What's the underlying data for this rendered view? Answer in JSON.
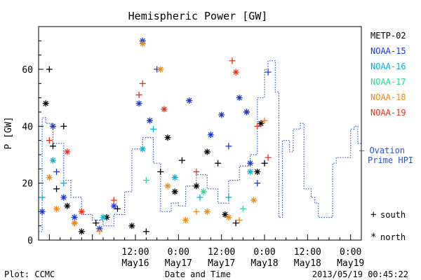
{
  "chart_data": {
    "type": "scatter",
    "title": "Hemispheric Power [GW]",
    "ylabel": "P [GW]",
    "xlabel": "Date and Time",
    "ylim": [
      0,
      75
    ],
    "yticks": [
      0,
      20,
      40,
      60
    ],
    "xrange": [
      "2013-05-15 09:00",
      "2013-05-19 03:00"
    ],
    "xticks": [
      {
        "t": "2013-05-16 12:00",
        "line1": "12:00",
        "line2": "May16"
      },
      {
        "t": "2013-05-17 00:00",
        "line1": "0:00",
        "line2": "May17"
      },
      {
        "t": "2013-05-17 12:00",
        "line1": "12:00",
        "line2": "May17"
      },
      {
        "t": "2013-05-18 00:00",
        "line1": "0:00",
        "line2": "May18"
      },
      {
        "t": "2013-05-18 12:00",
        "line1": "12:00",
        "line2": "May18"
      },
      {
        "t": "2013-05-19 00:00",
        "line1": "0:00",
        "line2": "May19"
      }
    ],
    "series": [
      {
        "name": "METP-02",
        "color": "#000000",
        "points": [
          [
            "2013-05-15 12:00",
            60,
            "s"
          ],
          [
            "2013-05-15 11:00",
            48,
            "n"
          ],
          [
            "2013-05-15 13:00",
            33,
            "s"
          ],
          [
            "2013-05-15 14:00",
            18,
            "s"
          ],
          [
            "2013-05-15 16:00",
            40,
            "s"
          ],
          [
            "2013-05-15 17:00",
            12,
            "n"
          ],
          [
            "2013-05-15 19:00",
            6,
            "s"
          ],
          [
            "2013-05-15 21:00",
            3,
            "n"
          ],
          [
            "2013-05-16 01:00",
            6,
            "s"
          ],
          [
            "2013-05-16 04:00",
            8,
            "n"
          ],
          [
            "2013-05-16 07:00",
            11,
            "s"
          ],
          [
            "2013-05-16 11:00",
            5,
            "n"
          ],
          [
            "2013-05-16 15:00",
            3,
            "s"
          ],
          [
            "2013-05-16 19:00",
            24,
            "s"
          ],
          [
            "2013-05-16 21:00",
            36,
            "n"
          ],
          [
            "2013-05-16 23:00",
            17,
            "n"
          ],
          [
            "2013-05-17 01:00",
            28,
            "s"
          ],
          [
            "2013-05-17 05:00",
            19,
            "n"
          ],
          [
            "2013-05-17 08:00",
            31,
            "n"
          ],
          [
            "2013-05-17 11:00",
            27,
            "s"
          ],
          [
            "2013-05-17 13:00",
            9,
            "n"
          ],
          [
            "2013-05-17 16:00",
            6,
            "s"
          ],
          [
            "2013-05-17 19:00",
            45,
            "s"
          ],
          [
            "2013-05-17 22:00",
            24,
            "n"
          ],
          [
            "2013-05-18 00:00",
            27,
            "s"
          ],
          [
            "2013-05-17 23:00",
            41,
            "n"
          ]
        ]
      },
      {
        "name": "NOAA-15",
        "color": "#1a36d8",
        "points": [
          [
            "2013-05-15 10:00",
            10,
            "n"
          ],
          [
            "2013-05-15 13:00",
            40,
            "n"
          ],
          [
            "2013-05-15 14:00",
            24,
            "s"
          ],
          [
            "2013-05-15 16:00",
            15,
            "n"
          ],
          [
            "2013-05-15 19:00",
            8,
            "n"
          ],
          [
            "2013-05-16 02:00",
            4,
            "n"
          ],
          [
            "2013-05-16 06:00",
            12,
            "n"
          ],
          [
            "2013-05-16 13:00",
            48,
            "n"
          ],
          [
            "2013-05-16 14:00",
            70,
            "n"
          ],
          [
            "2013-05-16 16:00",
            42,
            "n"
          ],
          [
            "2013-05-16 18:00",
            60,
            "s"
          ],
          [
            "2013-05-17 03:00",
            49,
            "n"
          ],
          [
            "2013-05-17 09:00",
            37,
            "n"
          ],
          [
            "2013-05-17 12:00",
            44,
            "n"
          ],
          [
            "2013-05-17 14:00",
            33,
            "s"
          ],
          [
            "2013-05-17 17:00",
            50,
            "n"
          ],
          [
            "2013-05-17 19:00",
            45,
            "n"
          ],
          [
            "2013-05-18 01:00",
            59,
            "s"
          ],
          [
            "2013-05-17 20:00",
            27,
            "n"
          ],
          [
            "2013-05-17 22:00",
            20,
            "s"
          ]
        ]
      },
      {
        "name": "NOAA-16",
        "color": "#00b4d8",
        "points": [
          [
            "2013-05-15 10:00",
            15,
            "s"
          ],
          [
            "2013-05-15 13:00",
            28,
            "n"
          ],
          [
            "2013-05-15 16:00",
            20,
            "s"
          ],
          [
            "2013-05-16 03:00",
            8,
            "n"
          ],
          [
            "2013-05-16 14:00",
            32,
            "n"
          ],
          [
            "2013-05-16 17:00",
            39,
            "s"
          ],
          [
            "2013-05-16 23:00",
            22,
            "n"
          ],
          [
            "2013-05-17 06:00",
            15,
            "s"
          ],
          [
            "2013-05-17 14:00",
            15,
            "s"
          ],
          [
            "2013-05-17 20:00",
            24,
            "n"
          ]
        ]
      },
      {
        "name": "NOAA-17",
        "color": "#30d890",
        "points": [
          [
            "2013-05-16 15:00",
            21,
            "s"
          ],
          [
            "2013-05-17 07:00",
            17,
            "n"
          ],
          [
            "2013-05-17 18:00",
            11,
            "s"
          ]
        ]
      },
      {
        "name": "NOAA-18",
        "color": "#ee8a1c",
        "points": [
          [
            "2013-05-15 12:00",
            22,
            "n"
          ],
          [
            "2013-05-15 14:00",
            11,
            "n"
          ],
          [
            "2013-05-15 19:00",
            6,
            "n"
          ],
          [
            "2013-05-16 02:00",
            3,
            "s"
          ],
          [
            "2013-05-16 14:00",
            69,
            "n"
          ],
          [
            "2013-05-16 19:00",
            60,
            "n"
          ],
          [
            "2013-05-16 21:00",
            19,
            "n"
          ],
          [
            "2013-05-17 02:00",
            7,
            "n"
          ],
          [
            "2013-05-17 05:00",
            10,
            "s"
          ],
          [
            "2013-05-17 08:00",
            10,
            "n"
          ],
          [
            "2013-05-17 14:00",
            8,
            "n"
          ],
          [
            "2013-05-17 17:00",
            7,
            "s"
          ],
          [
            "2013-05-17 21:00",
            14,
            "n"
          ],
          [
            "2013-05-18 00:00",
            42,
            "s"
          ]
        ]
      },
      {
        "name": "NOAA-19",
        "color": "#e83218",
        "points": [
          [
            "2013-05-15 12:00",
            35,
            "s"
          ],
          [
            "2013-05-15 17:00",
            31,
            "n"
          ],
          [
            "2013-05-15 21:00",
            10,
            "n"
          ],
          [
            "2013-05-16 06:00",
            14,
            "s"
          ],
          [
            "2013-05-16 13:00",
            51,
            "s"
          ],
          [
            "2013-05-16 14:00",
            55,
            "s"
          ],
          [
            "2013-05-16 20:00",
            46,
            "n"
          ],
          [
            "2013-05-17 05:00",
            24,
            "s"
          ],
          [
            "2013-05-17 15:00",
            63,
            "s"
          ],
          [
            "2013-05-17 16:00",
            59,
            "n"
          ],
          [
            "2013-05-17 22:00",
            40,
            "s"
          ],
          [
            "2013-05-18 01:00",
            29,
            "s"
          ]
        ]
      }
    ],
    "markers_legend": [
      {
        "symbol": "+",
        "label": "south"
      },
      {
        "symbol": "*",
        "label": "north"
      }
    ],
    "ovation": {
      "name": "Ovation Prime HPI",
      "color": "#2a55c8",
      "steps": [
        [
          "2013-05-15 09:00",
          3
        ],
        [
          "2013-05-15 10:00",
          43
        ],
        [
          "2013-05-15 11:00",
          41
        ],
        [
          "2013-05-15 13:00",
          34
        ],
        [
          "2013-05-15 16:00",
          21
        ],
        [
          "2013-05-15 18:00",
          15
        ],
        [
          "2013-05-15 21:00",
          9
        ],
        [
          "2013-05-16 00:00",
          7
        ],
        [
          "2013-05-16 03:00",
          5
        ],
        [
          "2013-05-16 06:00",
          9
        ],
        [
          "2013-05-16 09:00",
          17
        ],
        [
          "2013-05-16 11:00",
          32
        ],
        [
          "2013-05-16 14:00",
          36
        ],
        [
          "2013-05-16 17:00",
          27
        ],
        [
          "2013-05-16 19:00",
          10
        ],
        [
          "2013-05-16 22:00",
          13
        ],
        [
          "2013-05-17 00:00",
          12
        ],
        [
          "2013-05-17 02:00",
          19
        ],
        [
          "2013-05-17 05:00",
          23
        ],
        [
          "2013-05-17 08:00",
          18
        ],
        [
          "2013-05-17 11:00",
          13
        ],
        [
          "2013-05-17 14:00",
          21
        ],
        [
          "2013-05-17 17:00",
          26
        ],
        [
          "2013-05-17 20:00",
          30
        ],
        [
          "2013-05-17 22:00",
          50
        ],
        [
          "2013-05-18 00:00",
          60
        ],
        [
          "2013-05-18 01:00",
          63
        ],
        [
          "2013-05-18 03:00",
          52
        ],
        [
          "2013-05-18 04:00",
          8
        ],
        [
          "2013-05-18 05:00",
          35
        ],
        [
          "2013-05-18 07:00",
          31
        ],
        [
          "2013-05-18 08:00",
          39
        ],
        [
          "2013-05-18 10:00",
          41
        ],
        [
          "2013-05-18 11:00",
          18
        ],
        [
          "2013-05-18 13:00",
          15
        ],
        [
          "2013-05-18 14:00",
          13
        ],
        [
          "2013-05-18 15:00",
          8
        ],
        [
          "2013-05-18 19:00",
          27
        ],
        [
          "2013-05-18 20:00",
          29
        ],
        [
          "2013-05-19 00:00",
          39
        ],
        [
          "2013-05-19 01:00",
          40
        ],
        [
          "2013-05-19 02:00",
          34
        ],
        [
          "2013-05-19 03:00",
          32
        ]
      ]
    }
  },
  "legend_labels": [
    "METP-02",
    "NOAA-15",
    "NOAA-16",
    "NOAA-17",
    "NOAA-18",
    "NOAA-19"
  ],
  "ovation_label_line1": "— Ovation",
  "ovation_label_line2": "Prime HPI",
  "footer": {
    "plot_credit": "Plot: CCMC",
    "axis_title": "Date and Time",
    "timestamp": "2013/05/19 00:45:22"
  }
}
